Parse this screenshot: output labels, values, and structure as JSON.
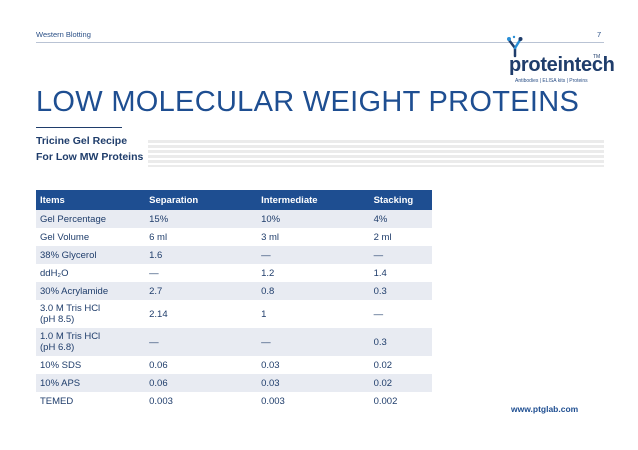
{
  "header": {
    "section": "Western Blotting",
    "page_number": "7"
  },
  "logo": {
    "name": "proteintech",
    "trademark": "TM",
    "tagline": "Antibodies  |  ELISA kits  |  Proteins",
    "icon": "antibody-logo-icon"
  },
  "title": "LOW MOLECULAR WEIGHT PROTEINS",
  "subtitle": {
    "line1": "Tricine Gel Recipe",
    "line2": "For Low MW Proteins"
  },
  "table": {
    "headers": [
      "Items",
      "Separation",
      "Intermediate",
      "Stacking"
    ],
    "rows": [
      {
        "item": "Gel Percentage",
        "separation": "15%",
        "intermediate": "10%",
        "stacking": "4%"
      },
      {
        "item": "Gel Volume",
        "separation": "6 ml",
        "intermediate": "3 ml",
        "stacking": "2 ml"
      },
      {
        "item": "38% Glycerol",
        "separation": "1.6",
        "intermediate": "—",
        "stacking": "—"
      },
      {
        "item": "ddH₂O",
        "separation": "—",
        "intermediate": "1.2",
        "stacking": "1.4"
      },
      {
        "item": "30% Acrylamide",
        "separation": "2.7",
        "intermediate": "0.8",
        "stacking": "0.3"
      },
      {
        "item_line1": "3.0 M Tris HCl",
        "item_line2": "(pH 8.5)",
        "separation": "2.14",
        "intermediate": "1",
        "stacking": "—"
      },
      {
        "item_line1": "1.0 M Tris HCl",
        "item_line2": "(pH 6.8)",
        "separation": "—",
        "intermediate": "—",
        "stacking": "0.3"
      },
      {
        "item": "10% SDS",
        "separation": "0.06",
        "intermediate": "0.03",
        "stacking": "0.02"
      },
      {
        "item": "10% APS",
        "separation": "0.06",
        "intermediate": "0.03",
        "stacking": "0.02"
      },
      {
        "item": "TEMED",
        "separation": "0.003",
        "intermediate": "0.003",
        "stacking": "0.002"
      }
    ]
  },
  "footer": {
    "url": "www.ptglab.com"
  },
  "colors": {
    "brand_blue": "#1e4e91",
    "navy": "#1f3d6b",
    "row_shade": "#e8ebf2"
  }
}
